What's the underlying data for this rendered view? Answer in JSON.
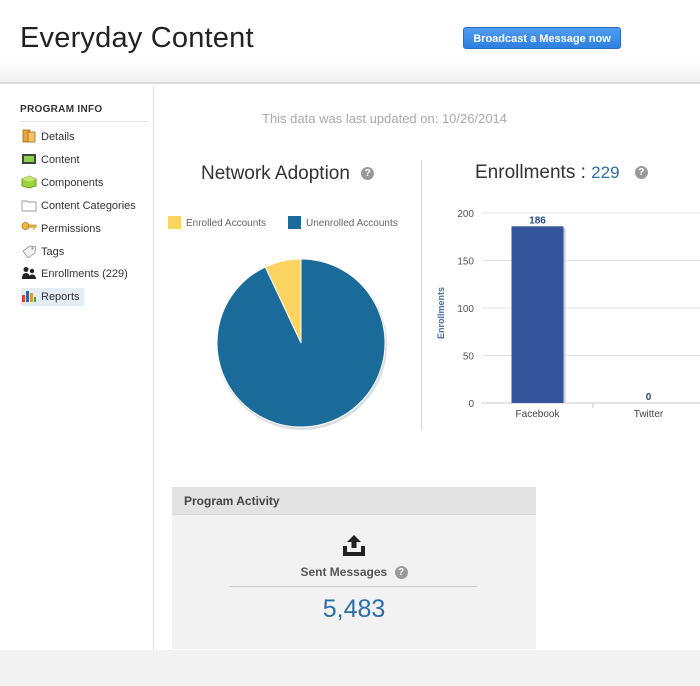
{
  "header": {
    "title": "Everyday Content",
    "broadcast_button": "Broadcast a Message now"
  },
  "sidebar": {
    "heading": "PROGRAM INFO",
    "items": [
      {
        "label": "Details",
        "icon": "details-icon"
      },
      {
        "label": "Content",
        "icon": "content-icon"
      },
      {
        "label": "Components",
        "icon": "components-icon"
      },
      {
        "label": "Content Categories",
        "icon": "content-categories-icon"
      },
      {
        "label": "Permissions",
        "icon": "permissions-icon"
      },
      {
        "label": "Tags",
        "icon": "tags-icon"
      },
      {
        "label": "Enrollments (229)",
        "icon": "enrollments-icon"
      },
      {
        "label": "Reports",
        "icon": "reports-icon",
        "active": true
      }
    ]
  },
  "main": {
    "updated_text": "This data was last updated on: 10/26/2014",
    "help_glyph": "?"
  },
  "network_adoption": {
    "title": "Network Adoption",
    "legend": [
      {
        "label": "Enrolled Accounts",
        "color": "#fcd462"
      },
      {
        "label": "Unenrolled Accounts",
        "color": "#1a6b9a"
      }
    ]
  },
  "enrollments_panel": {
    "title": "Enrollments :",
    "count": "229"
  },
  "chart_data": [
    {
      "type": "pie",
      "title": "Network Adoption",
      "labels": [
        "Enrolled Accounts",
        "Unenrolled Accounts"
      ],
      "values": [
        7,
        93
      ],
      "colors": [
        "#fcd462",
        "#1a6b9a"
      ]
    },
    {
      "type": "bar",
      "title": "Enrollments : 229",
      "categories": [
        "Facebook",
        "Twitter"
      ],
      "values": [
        186,
        0
      ],
      "data_labels": [
        "186",
        "0"
      ],
      "ylabel": "Enrollments",
      "yticks": [
        0,
        50,
        100,
        150,
        200
      ],
      "ylim": [
        0,
        200
      ],
      "grid": true,
      "color": "#34559b"
    }
  ],
  "program_activity": {
    "title": "Program Activity",
    "sent_label": "Sent Messages",
    "sent_value": "5,483"
  }
}
